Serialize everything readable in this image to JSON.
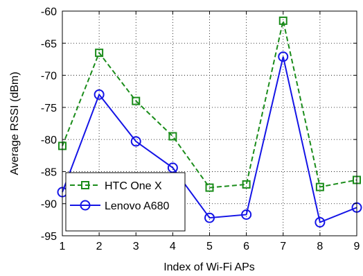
{
  "chart_data": {
    "type": "line",
    "title": "",
    "xlabel": "Index of Wi-Fi APs",
    "ylabel": "Average RSSI (dBm)",
    "x": [
      1,
      2,
      3,
      4,
      5,
      6,
      7,
      8,
      9
    ],
    "xlim": [
      1,
      9
    ],
    "ylim": [
      -95,
      -60
    ],
    "xticks": [
      1,
      2,
      3,
      4,
      5,
      6,
      7,
      8,
      9
    ],
    "yticks": [
      -95,
      -90,
      -85,
      -80,
      -75,
      -70,
      -65,
      -60
    ],
    "grid": true,
    "legend_position": "bottom-left",
    "series": [
      {
        "name": "HTC One X",
        "values": [
          -81.0,
          -66.5,
          -74.0,
          -79.5,
          -87.5,
          -87.0,
          -61.5,
          -87.4,
          -86.3
        ],
        "color": "#1a8c1a",
        "line_style": "dashed",
        "marker": "square"
      },
      {
        "name": "Lenovo A680",
        "values": [
          -88.2,
          -73.0,
          -80.3,
          -84.4,
          -92.2,
          -91.7,
          -67.1,
          -92.9,
          -90.6
        ],
        "color": "#1414e6",
        "line_style": "solid",
        "marker": "circle"
      }
    ]
  }
}
